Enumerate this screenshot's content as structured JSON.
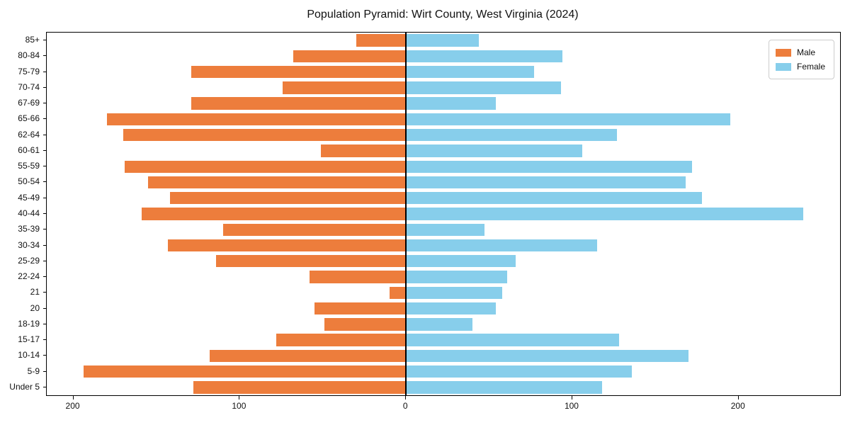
{
  "title": "Population Pyramid: Wirt County, West Virginia (2024)",
  "colors": {
    "male": "#ed7d3c",
    "female": "#87ceeb",
    "axis": "#000000",
    "background": "#ffffff"
  },
  "legend": {
    "male_label": "Male",
    "female_label": "Female",
    "position": "upper right"
  },
  "chart_data": {
    "type": "bar",
    "subtype": "population-pyramid",
    "title": "Population Pyramid: Wirt County, West Virginia (2024)",
    "xlabel": "",
    "ylabel": "",
    "grid": false,
    "categories": [
      "85+",
      "80-84",
      "75-79",
      "70-74",
      "67-69",
      "65-66",
      "62-64",
      "60-61",
      "55-59",
      "50-54",
      "45-49",
      "40-44",
      "35-39",
      "30-34",
      "25-29",
      "22-24",
      "21",
      "20",
      "18-19",
      "15-17",
      "10-14",
      "5-9",
      "Under 5"
    ],
    "series": [
      {
        "name": "Male",
        "side": "left",
        "color": "#ed7d3c",
        "values": [
          30,
          68,
          129,
          74,
          129,
          180,
          170,
          51,
          169,
          155,
          142,
          159,
          110,
          143,
          114,
          58,
          10,
          55,
          49,
          78,
          118,
          194,
          128
        ]
      },
      {
        "name": "Female",
        "side": "right",
        "color": "#87ceeb",
        "values": [
          44,
          94,
          77,
          93,
          54,
          195,
          127,
          106,
          172,
          168,
          178,
          239,
          47,
          115,
          66,
          61,
          58,
          54,
          40,
          128,
          170,
          136,
          118
        ]
      }
    ],
    "xlim": [
      -216,
      261
    ],
    "x_ticks": [
      -200,
      -100,
      0,
      100,
      200
    ],
    "x_tick_labels": [
      "200",
      "100",
      "0",
      "100",
      "200"
    ],
    "legend_entries": [
      "Male",
      "Female"
    ]
  }
}
